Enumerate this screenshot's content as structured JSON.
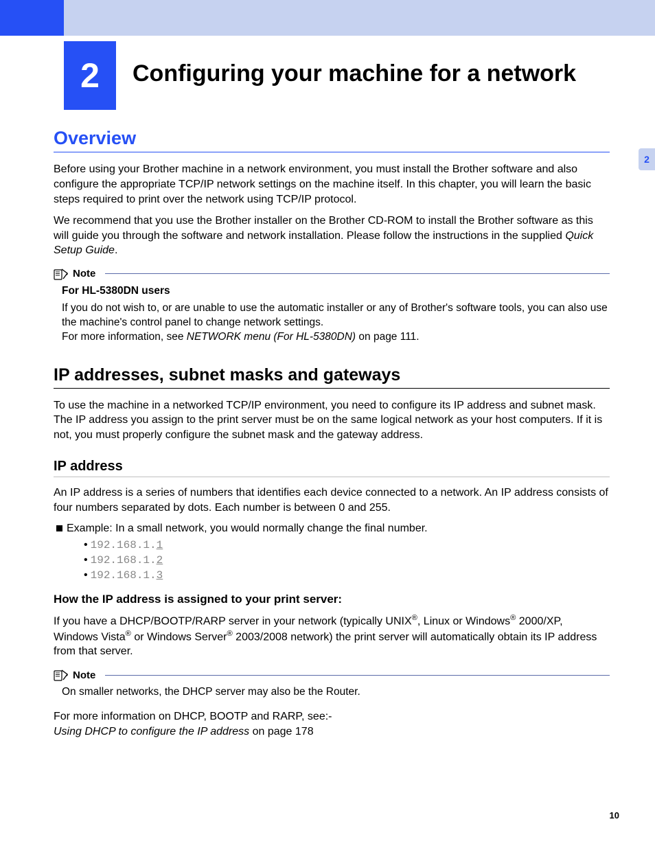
{
  "colors": {
    "brand_blue": "#2650f5",
    "light_blue": "#c6d2f0",
    "text": "#000000",
    "ip_grey": "#888888",
    "note_line": "#5a6aa8"
  },
  "header": {
    "chapter_number": "2",
    "chapter_title": "Configuring your machine for a network"
  },
  "side_tab": "2",
  "overview": {
    "heading": "Overview",
    "p1": "Before using your Brother machine in a network environment, you must install the Brother software and also configure the appropriate TCP/IP network settings on the machine itself. In this chapter, you will learn the basic steps required to print over the network using TCP/IP protocol.",
    "p2_a": "We recommend that you use the Brother installer on the Brother CD-ROM to install the Brother software as this will guide you through the software and network installation. Please follow the instructions in the supplied ",
    "p2_b_italic": "Quick Setup Guide",
    "p2_c": "."
  },
  "note1": {
    "label": "Note",
    "bold": "For HL-5380DN users",
    "line1": "If you do not wish to, or are unable to use the automatic installer or any of Brother's software tools, you can also use the machine's control panel to change network settings.",
    "line2_a": "For more information, see ",
    "line2_b_italic": "NETWORK menu (For HL-5380DN)",
    "line2_c": " on page 111."
  },
  "ip_section": {
    "heading": "IP addresses, subnet masks and gateways",
    "p1": "To use the machine in a networked TCP/IP environment, you need to configure its IP address and subnet mask. The IP address you assign to the print server must be on the same logical network as your host computers. If it is not, you must properly configure the subnet mask and the gateway address."
  },
  "ip_address": {
    "heading": "IP address",
    "p1": "An IP address is a series of numbers that identifies each device connected to a network. An IP address consists of four numbers separated by dots. Each number is between 0 and 255.",
    "example_label": "Example: In a small network, you would normally change the final number.",
    "ips": [
      {
        "prefix": "192.168.1.",
        "last": "1"
      },
      {
        "prefix": "192.168.1.",
        "last": "2"
      },
      {
        "prefix": "192.168.1.",
        "last": "3"
      }
    ]
  },
  "assignment": {
    "heading": "How the IP address is assigned to your print server:",
    "p1_html": "If you have a DHCP/BOOTP/RARP server in your network (typically UNIX<sup>®</sup>, Linux or Windows<sup>®</sup> 2000/XP, Windows Vista<sup>®</sup> or Windows Server<sup>®</sup> 2003/2008 network) the print server will automatically obtain its IP address from that server."
  },
  "note2": {
    "label": "Note",
    "body": "On smaller networks, the DHCP server may also be the Router."
  },
  "footer_para": {
    "line1": "For more information on DHCP, BOOTP and RARP, see:-",
    "line2_italic": "Using DHCP to configure the IP address",
    "line2_tail": " on page 178"
  },
  "page_number": "10"
}
